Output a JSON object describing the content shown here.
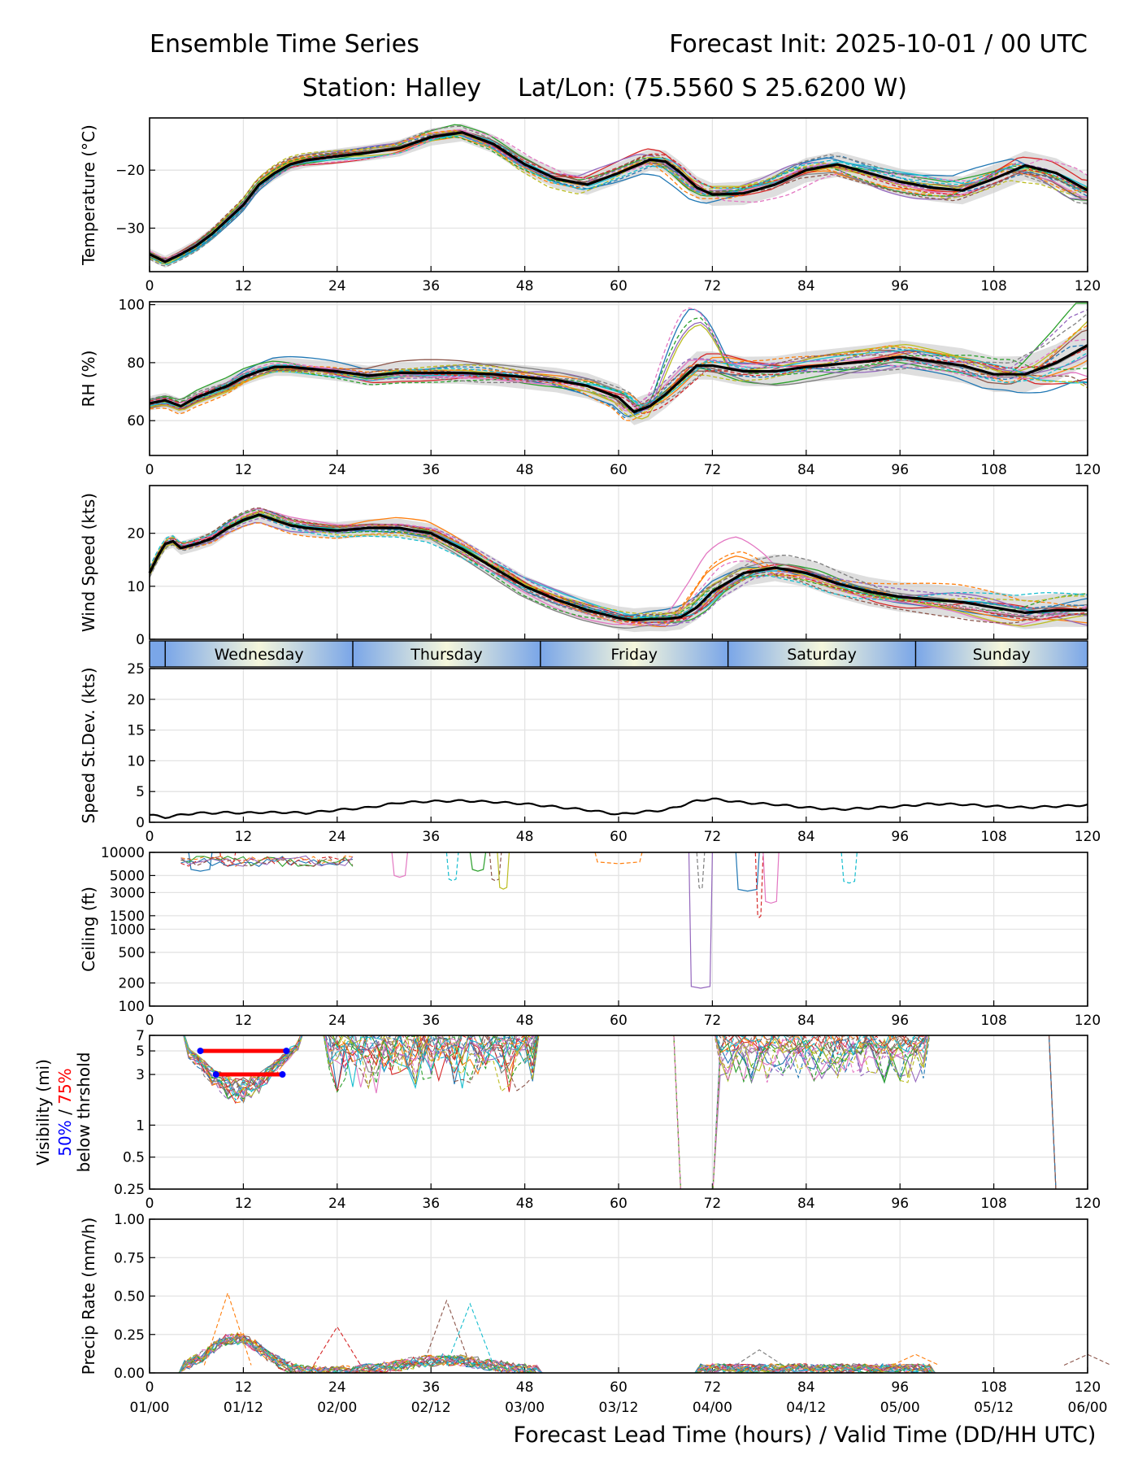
{
  "header": {
    "title_left": "Ensemble Time Series",
    "title_right": "Forecast Init: 2025-10-01 / 00 UTC",
    "station": "Station: Halley",
    "latlon": "Lat/Lon: (75.5560 S 25.6200 W)"
  },
  "xaxis": {
    "range": [
      0,
      120
    ],
    "ticks": [
      0,
      12,
      24,
      36,
      48,
      60,
      72,
      84,
      96,
      108,
      120
    ],
    "valid_labels": [
      "01/00",
      "01/12",
      "02/00",
      "02/12",
      "03/00",
      "03/12",
      "04/00",
      "04/12",
      "05/00",
      "05/12",
      "06/00"
    ],
    "label": "Forecast Lead Time (hours) / Valid Time (DD/HH UTC)"
  },
  "day_bar": {
    "days": [
      {
        "name": "Wednesday",
        "start": 2,
        "end": 26
      },
      {
        "name": "Thursday",
        "start": 26,
        "end": 50
      },
      {
        "name": "Friday",
        "start": 50,
        "end": 74
      },
      {
        "name": "Saturday",
        "start": 74,
        "end": 98
      },
      {
        "name": "Sunday",
        "start": 98,
        "end": 120
      }
    ],
    "colors": {
      "edge": "#7aa6e8",
      "mid": "#f5f7dc"
    }
  },
  "colors": {
    "members": [
      "#1f77b4",
      "#ff7f0e",
      "#2ca02c",
      "#d62728",
      "#9467bd",
      "#8c564b",
      "#e377c2",
      "#7f7f7f",
      "#bcbd22",
      "#17becf"
    ],
    "mean": "#000000",
    "spread": "#c8c8c8",
    "vis50": "#0000ff",
    "vis75": "#ff0000"
  },
  "chart_data": [
    {
      "type": "line",
      "name": "temperature",
      "ylabel": "Temperature (°C)",
      "ylim": [
        -37.5,
        -11
      ],
      "yticks": [
        -30,
        -20
      ],
      "ytick_labels": [
        "−30",
        "−20"
      ],
      "members": 20,
      "mean_x": [
        0,
        2,
        4,
        6,
        8,
        10,
        12,
        14,
        16,
        18,
        20,
        24,
        28,
        32,
        36,
        40,
        44,
        48,
        52,
        56,
        60,
        64,
        66,
        68,
        70,
        72,
        76,
        80,
        84,
        88,
        92,
        96,
        100,
        104,
        108,
        112,
        116,
        120
      ],
      "mean_y": [
        -34.5,
        -35.8,
        -34.5,
        -33,
        -31,
        -28.5,
        -26,
        -22.5,
        -20.5,
        -19,
        -18.3,
        -17.6,
        -17,
        -16.2,
        -14.3,
        -13.5,
        -15.5,
        -19,
        -21.5,
        -22.5,
        -20.5,
        -18.2,
        -18.5,
        -20.5,
        -23,
        -24.2,
        -24,
        -22.5,
        -20,
        -19,
        -20.5,
        -22,
        -23,
        -23.5,
        -21.5,
        -19.2,
        -20.5,
        -23.5
      ]
    },
    {
      "type": "line",
      "name": "rh",
      "ylabel": "RH (%)",
      "ylim": [
        48,
        101
      ],
      "yticks": [
        60,
        80,
        100
      ],
      "ytick_labels": [
        "60",
        "80",
        "100"
      ],
      "members": 20,
      "mean_x": [
        0,
        2,
        4,
        6,
        8,
        10,
        12,
        14,
        16,
        18,
        20,
        24,
        28,
        32,
        36,
        40,
        44,
        48,
        52,
        56,
        60,
        62,
        64,
        66,
        68,
        70,
        72,
        76,
        80,
        84,
        88,
        92,
        96,
        100,
        104,
        108,
        112,
        116,
        120
      ],
      "mean_y": [
        66,
        67,
        65,
        68,
        70,
        72,
        75,
        77,
        78.5,
        78.5,
        78,
        77,
        75.5,
        76.5,
        76.5,
        76.5,
        76,
        75,
        74,
        72,
        68,
        63,
        65,
        69,
        74,
        79,
        79,
        77,
        77,
        78.5,
        79.5,
        80.5,
        82,
        80.5,
        79,
        76,
        76,
        80,
        86
      ]
    },
    {
      "type": "line",
      "name": "wind",
      "ylabel": "Wind Speed (kts)",
      "ylim": [
        0,
        29
      ],
      "yticks": [
        0,
        10,
        20
      ],
      "ytick_labels": [
        "0",
        "10",
        "20"
      ],
      "members": 20,
      "mean_x": [
        0,
        1,
        2,
        3,
        4,
        6,
        8,
        10,
        12,
        14,
        16,
        18,
        20,
        24,
        28,
        32,
        36,
        40,
        44,
        48,
        52,
        56,
        60,
        62,
        64,
        66,
        68,
        70,
        72,
        76,
        80,
        84,
        88,
        92,
        96,
        100,
        104,
        108,
        112,
        116,
        120
      ],
      "mean_y": [
        12.5,
        15.5,
        18,
        18.5,
        17.2,
        18,
        19,
        21,
        22.5,
        23.5,
        22.5,
        21.5,
        21,
        20.5,
        21,
        21,
        20,
        17,
        13.5,
        10,
        7.5,
        5.5,
        4,
        3.6,
        3.8,
        3.8,
        4.2,
        6,
        9,
        12.5,
        13.5,
        12.5,
        10.5,
        9,
        8,
        7.5,
        7,
        6,
        5,
        5.5,
        5.5
      ]
    },
    {
      "type": "line",
      "name": "speed_stdev",
      "ylabel": "Speed St.Dev. (kts)",
      "ylim": [
        0,
        25
      ],
      "yticks": [
        0,
        5,
        10,
        15,
        20,
        25
      ],
      "ytick_labels": [
        "0",
        "5",
        "10",
        "15",
        "20",
        "25"
      ],
      "x": [
        0,
        2,
        4,
        6,
        8,
        10,
        12,
        14,
        16,
        18,
        20,
        24,
        28,
        32,
        36,
        40,
        44,
        48,
        52,
        56,
        60,
        64,
        66,
        68,
        70,
        72,
        76,
        80,
        84,
        88,
        92,
        96,
        100,
        104,
        108,
        112,
        116,
        120
      ],
      "y": [
        1.2,
        0.8,
        1.2,
        1.5,
        1.5,
        1.6,
        1.5,
        1.6,
        1.6,
        1.6,
        1.5,
        2.0,
        2.4,
        3.2,
        3.4,
        3.5,
        3.3,
        3.0,
        2.5,
        2.0,
        1.3,
        1.8,
        2.0,
        2.7,
        3.5,
        3.8,
        3.2,
        2.9,
        2.4,
        2.1,
        2.3,
        2.6,
        3.0,
        2.9,
        2.6,
        2.4,
        2.6,
        2.8
      ]
    },
    {
      "type": "line",
      "name": "ceiling",
      "ylabel": "Ceiling (ft)",
      "yscale": "log",
      "ylim": [
        100,
        10000
      ],
      "yticks": [
        100,
        200,
        500,
        1000,
        1500,
        3000,
        5000,
        10000
      ],
      "ytick_labels": [
        "100",
        "200",
        "500",
        "1000",
        "1500",
        "3000",
        "5000",
        "10000"
      ],
      "dips": [
        {
          "x0": 5,
          "x1": 8,
          "min": 6000
        },
        {
          "x0": 9,
          "x1": 11,
          "min": 7000
        },
        {
          "x0": 31,
          "x1": 33,
          "min": 5000
        },
        {
          "x0": 38,
          "x1": 39.5,
          "min": 4500
        },
        {
          "x0": 41,
          "x1": 43,
          "min": 6000
        },
        {
          "x0": 43.5,
          "x1": 45,
          "min": 4500
        },
        {
          "x0": 44.5,
          "x1": 46,
          "min": 3500
        },
        {
          "x0": 57,
          "x1": 63,
          "min": 7500
        },
        {
          "x0": 69,
          "x1": 72,
          "min": 180
        },
        {
          "x0": 70,
          "x1": 71,
          "min": 3500
        },
        {
          "x0": 75,
          "x1": 78,
          "min": 3300
        },
        {
          "x0": 77.5,
          "x1": 78.5,
          "min": 1500
        },
        {
          "x0": 78.5,
          "x1": 80.5,
          "min": 2300
        },
        {
          "x0": 88.5,
          "x1": 90.5,
          "min": 4200
        }
      ]
    },
    {
      "type": "line",
      "name": "visibility",
      "ylabel": "Visibility (mi)",
      "ylabel_50": "50%",
      "ylabel_sep": " / ",
      "ylabel_75": "75%",
      "ylabel_below": "below thrshold",
      "yscale": "log",
      "ylim": [
        0.25,
        7
      ],
      "yticks": [
        0.25,
        0.5,
        1,
        3,
        5,
        7
      ],
      "ytick_labels": [
        "0.25",
        "0.5",
        "1",
        "3",
        "5",
        "7"
      ],
      "threshold_lines": [
        {
          "level": 5,
          "x0": 6.5,
          "x1": 17.5,
          "pct": "75%"
        },
        {
          "level": 3,
          "x0": 8.5,
          "x1": 17,
          "pct": "75%"
        }
      ],
      "threshold_markers": [
        {
          "level": 5,
          "x0": 6.5,
          "x1": 17.5,
          "pct": "50%"
        },
        {
          "level": 3,
          "x0": 8.5,
          "x1": 17,
          "pct": "50%"
        }
      ]
    },
    {
      "type": "line",
      "name": "precip",
      "ylabel": "Precip Rate (mm/h)",
      "ylim": [
        0,
        1
      ],
      "yticks": [
        0,
        0.25,
        0.5,
        0.75,
        1
      ],
      "ytick_labels": [
        "0.00",
        "0.25",
        "0.50",
        "0.75",
        "1.00"
      ],
      "members": 20,
      "peaks": [
        {
          "x": 10,
          "y": 0.52
        },
        {
          "x": 38,
          "y": 0.47
        },
        {
          "x": 41,
          "y": 0.45
        },
        {
          "x": 24,
          "y": 0.3
        },
        {
          "x": 78,
          "y": 0.15
        },
        {
          "x": 98,
          "y": 0.12
        },
        {
          "x": 120,
          "y": 0.12
        }
      ]
    }
  ]
}
